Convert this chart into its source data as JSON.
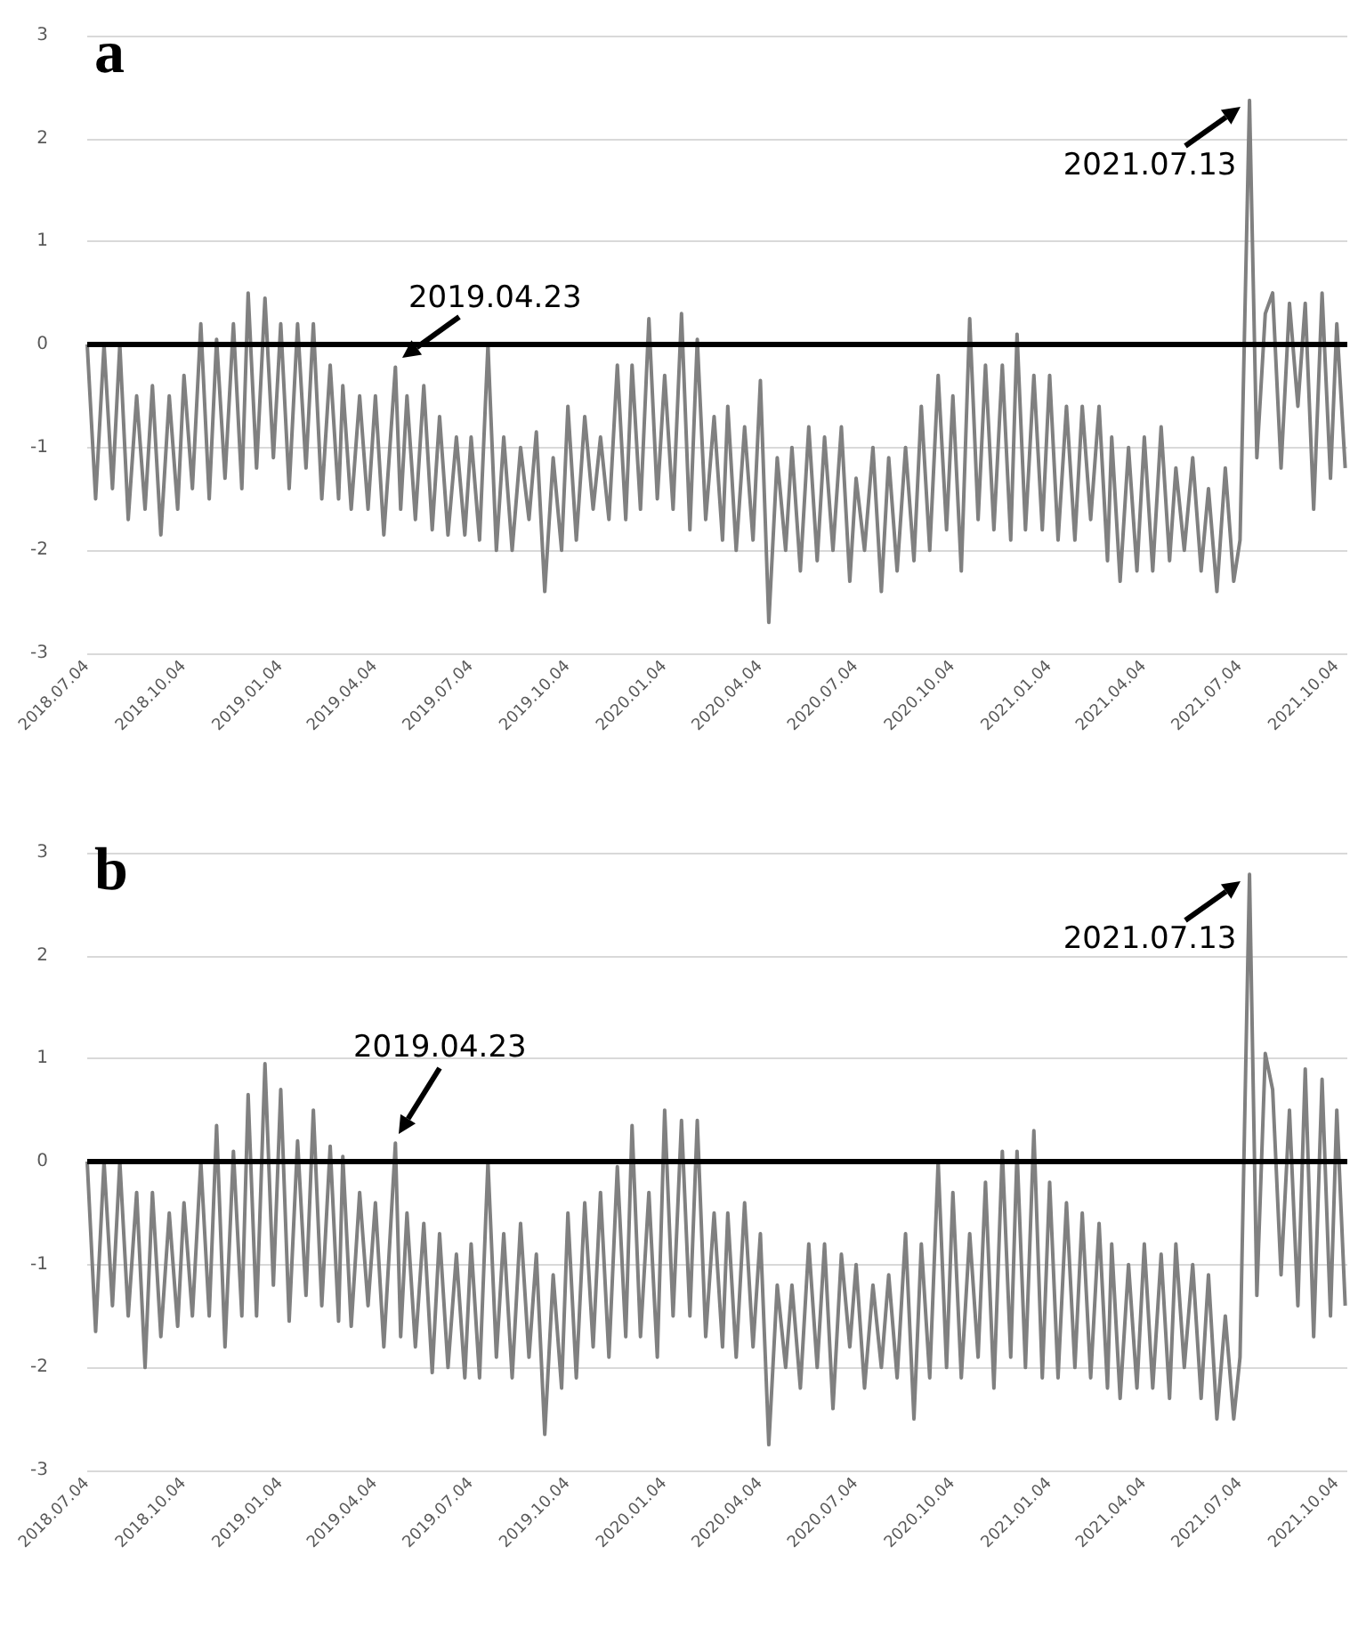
{
  "chart_data": [
    {
      "type": "line",
      "title": "a",
      "grid": "y",
      "marker": "none",
      "line_style": "solid",
      "ylim": [
        -3,
        3
      ],
      "yticks": [
        -3,
        -2,
        -1,
        0,
        1,
        2,
        3
      ],
      "xlim": [
        "2018-07-04",
        "2021-10-14"
      ],
      "xticks": [
        {
          "value": "2018-07-04",
          "label": "2018.07.04"
        },
        {
          "value": "2018-10-04",
          "label": "2018.10.04"
        },
        {
          "value": "2019-01-04",
          "label": "2019.01.04"
        },
        {
          "value": "2019-04-04",
          "label": "2019.04.04"
        },
        {
          "value": "2019-07-04",
          "label": "2019.07.04"
        },
        {
          "value": "2019-10-04",
          "label": "2019.10.04"
        },
        {
          "value": "2020-01-04",
          "label": "2020.01.04"
        },
        {
          "value": "2020-04-04",
          "label": "2020.04.04"
        },
        {
          "value": "2020-07-04",
          "label": "2020.07.04"
        },
        {
          "value": "2020-10-04",
          "label": "2020.10.04"
        },
        {
          "value": "2021-01-04",
          "label": "2021.01.04"
        },
        {
          "value": "2021-04-04",
          "label": "2021.04.04"
        },
        {
          "value": "2021-07-04",
          "label": "2021.07.04"
        },
        {
          "value": "2021-10-04",
          "label": "2021.10.04"
        }
      ],
      "ref_lines": [
        {
          "axis": "y",
          "value": 0,
          "color": "#000000"
        }
      ],
      "annotations": [
        {
          "text": "2019.04.23",
          "x": "2019-04-23",
          "y": -0.22
        },
        {
          "text": "2021.07.13",
          "x": "2021-07-13",
          "y": 2.37
        }
      ],
      "x": [
        "2018-07-04",
        "2018-07-12",
        "2018-07-20",
        "2018-07-28",
        "2018-08-04",
        "2018-08-12",
        "2018-08-20",
        "2018-08-28",
        "2018-09-04",
        "2018-09-12",
        "2018-09-20",
        "2018-09-28",
        "2018-10-04",
        "2018-10-12",
        "2018-10-20",
        "2018-10-28",
        "2018-11-04",
        "2018-11-12",
        "2018-11-20",
        "2018-11-28",
        "2018-12-04",
        "2018-12-12",
        "2018-12-20",
        "2018-12-28",
        "2019-01-04",
        "2019-01-12",
        "2019-01-20",
        "2019-01-28",
        "2019-02-04",
        "2019-02-12",
        "2019-02-20",
        "2019-02-28",
        "2019-03-04",
        "2019-03-12",
        "2019-03-20",
        "2019-03-28",
        "2019-04-04",
        "2019-04-12",
        "2019-04-23",
        "2019-04-28",
        "2019-05-04",
        "2019-05-12",
        "2019-05-20",
        "2019-05-28",
        "2019-06-04",
        "2019-06-12",
        "2019-06-20",
        "2019-06-28",
        "2019-07-04",
        "2019-07-12",
        "2019-07-20",
        "2019-07-28",
        "2019-08-04",
        "2019-08-12",
        "2019-08-20",
        "2019-08-28",
        "2019-09-04",
        "2019-09-12",
        "2019-09-20",
        "2019-09-28",
        "2019-10-04",
        "2019-10-12",
        "2019-10-20",
        "2019-10-28",
        "2019-11-04",
        "2019-11-12",
        "2019-11-20",
        "2019-11-28",
        "2019-12-04",
        "2019-12-12",
        "2019-12-20",
        "2019-12-28",
        "2020-01-04",
        "2020-01-12",
        "2020-01-20",
        "2020-01-28",
        "2020-02-04",
        "2020-02-12",
        "2020-02-20",
        "2020-02-28",
        "2020-03-04",
        "2020-03-12",
        "2020-03-20",
        "2020-03-28",
        "2020-04-04",
        "2020-04-12",
        "2020-04-20",
        "2020-04-28",
        "2020-05-04",
        "2020-05-12",
        "2020-05-20",
        "2020-05-28",
        "2020-06-04",
        "2020-06-12",
        "2020-06-20",
        "2020-06-28",
        "2020-07-04",
        "2020-07-12",
        "2020-07-20",
        "2020-07-28",
        "2020-08-04",
        "2020-08-12",
        "2020-08-20",
        "2020-08-28",
        "2020-09-04",
        "2020-09-12",
        "2020-09-20",
        "2020-09-28",
        "2020-10-04",
        "2020-10-12",
        "2020-10-20",
        "2020-10-28",
        "2020-11-04",
        "2020-11-12",
        "2020-11-20",
        "2020-11-28",
        "2020-12-04",
        "2020-12-12",
        "2020-12-20",
        "2020-12-28",
        "2021-01-04",
        "2021-01-12",
        "2021-01-20",
        "2021-01-28",
        "2021-02-04",
        "2021-02-12",
        "2021-02-20",
        "2021-02-28",
        "2021-03-04",
        "2021-03-12",
        "2021-03-20",
        "2021-03-28",
        "2021-04-04",
        "2021-04-12",
        "2021-04-20",
        "2021-04-28",
        "2021-05-04",
        "2021-05-12",
        "2021-05-20",
        "2021-05-28",
        "2021-06-04",
        "2021-06-12",
        "2021-06-20",
        "2021-06-28",
        "2021-07-04",
        "2021-07-13",
        "2021-07-20",
        "2021-07-28",
        "2021-08-04",
        "2021-08-12",
        "2021-08-20",
        "2021-08-28",
        "2021-09-04",
        "2021-09-12",
        "2021-09-20",
        "2021-09-28",
        "2021-10-04",
        "2021-10-12"
      ],
      "series": [
        {
          "color": "#808080",
          "values": [
            0,
            -1.5,
            0,
            -1.4,
            0,
            -1.7,
            -0.5,
            -1.6,
            -0.4,
            -1.85,
            -0.5,
            -1.6,
            -0.3,
            -1.4,
            0.2,
            -1.5,
            0.05,
            -1.3,
            0.2,
            -1.4,
            0.5,
            -1.2,
            0.45,
            -1.1,
            0.2,
            -1.4,
            0.2,
            -1.2,
            0.2,
            -1.5,
            -0.2,
            -1.5,
            -0.4,
            -1.6,
            -0.5,
            -1.6,
            -0.5,
            -1.85,
            -0.22,
            -1.6,
            -0.5,
            -1.7,
            -0.4,
            -1.8,
            -0.7,
            -1.85,
            -0.9,
            -1.85,
            -0.9,
            -1.9,
            0,
            -2.0,
            -0.9,
            -2.0,
            -1.0,
            -1.7,
            -0.85,
            -2.4,
            -1.1,
            -2.0,
            -0.6,
            -1.9,
            -0.7,
            -1.6,
            -0.9,
            -1.7,
            -0.2,
            -1.7,
            -0.2,
            -1.6,
            0.25,
            -1.5,
            -0.3,
            -1.6,
            0.3,
            -1.8,
            0.05,
            -1.7,
            -0.7,
            -1.9,
            -0.6,
            -2.0,
            -0.8,
            -1.9,
            -0.35,
            -2.7,
            -1.1,
            -2.0,
            -1.0,
            -2.2,
            -0.8,
            -2.1,
            -0.9,
            -2.0,
            -0.8,
            -2.3,
            -1.3,
            -2.0,
            -1.0,
            -2.4,
            -1.1,
            -2.2,
            -1.0,
            -2.1,
            -0.6,
            -2.0,
            -0.3,
            -1.8,
            -0.5,
            -2.2,
            0.25,
            -1.7,
            -0.2,
            -1.8,
            -0.2,
            -1.9,
            0.1,
            -1.8,
            -0.3,
            -1.8,
            -0.3,
            -1.9,
            -0.6,
            -1.9,
            -0.6,
            -1.7,
            -0.6,
            -2.1,
            -0.9,
            -2.3,
            -1.0,
            -2.2,
            -0.9,
            -2.2,
            -0.8,
            -2.1,
            -1.2,
            -2.0,
            -1.1,
            -2.2,
            -1.4,
            -2.4,
            -1.2,
            -2.3,
            -1.9,
            2.37,
            -1.1,
            0.3,
            0.5,
            -1.2,
            0.4,
            -0.6,
            0.4,
            -1.6,
            0.5,
            -1.3,
            0.2,
            -1.2
          ]
        }
      ]
    },
    {
      "type": "line",
      "title": "b",
      "grid": "y",
      "marker": "none",
      "line_style": "solid",
      "ylim": [
        -3,
        3
      ],
      "yticks": [
        -3,
        -2,
        -1,
        0,
        1,
        2,
        3
      ],
      "xlim": [
        "2018-07-04",
        "2021-10-14"
      ],
      "xticks": [
        {
          "value": "2018-07-04",
          "label": "2018.07.04"
        },
        {
          "value": "2018-10-04",
          "label": "2018.10.04"
        },
        {
          "value": "2019-01-04",
          "label": "2019.01.04"
        },
        {
          "value": "2019-04-04",
          "label": "2019.04.04"
        },
        {
          "value": "2019-07-04",
          "label": "2019.07.04"
        },
        {
          "value": "2019-10-04",
          "label": "2019.10.04"
        },
        {
          "value": "2020-01-04",
          "label": "2020.01.04"
        },
        {
          "value": "2020-04-04",
          "label": "2020.04.04"
        },
        {
          "value": "2020-07-04",
          "label": "2020.07.04"
        },
        {
          "value": "2020-10-04",
          "label": "2020.10.04"
        },
        {
          "value": "2021-01-04",
          "label": "2021.01.04"
        },
        {
          "value": "2021-04-04",
          "label": "2021.04.04"
        },
        {
          "value": "2021-07-04",
          "label": "2021.07.04"
        },
        {
          "value": "2021-10-04",
          "label": "2021.10.04"
        }
      ],
      "ref_lines": [
        {
          "axis": "y",
          "value": 0,
          "color": "#000000"
        }
      ],
      "annotations": [
        {
          "text": "2019.04.23",
          "x": "2019-04-23",
          "y": 0.18
        },
        {
          "text": "2021.07.13",
          "x": "2021-07-13",
          "y": 2.79
        }
      ],
      "x": [
        "2018-07-04",
        "2018-07-12",
        "2018-07-20",
        "2018-07-28",
        "2018-08-04",
        "2018-08-12",
        "2018-08-20",
        "2018-08-28",
        "2018-09-04",
        "2018-09-12",
        "2018-09-20",
        "2018-09-28",
        "2018-10-04",
        "2018-10-12",
        "2018-10-20",
        "2018-10-28",
        "2018-11-04",
        "2018-11-12",
        "2018-11-20",
        "2018-11-28",
        "2018-12-04",
        "2018-12-12",
        "2018-12-20",
        "2018-12-28",
        "2019-01-04",
        "2019-01-12",
        "2019-01-20",
        "2019-01-28",
        "2019-02-04",
        "2019-02-12",
        "2019-02-20",
        "2019-02-28",
        "2019-03-04",
        "2019-03-12",
        "2019-03-20",
        "2019-03-28",
        "2019-04-04",
        "2019-04-12",
        "2019-04-23",
        "2019-04-28",
        "2019-05-04",
        "2019-05-12",
        "2019-05-20",
        "2019-05-28",
        "2019-06-04",
        "2019-06-12",
        "2019-06-20",
        "2019-06-28",
        "2019-07-04",
        "2019-07-12",
        "2019-07-20",
        "2019-07-28",
        "2019-08-04",
        "2019-08-12",
        "2019-08-20",
        "2019-08-28",
        "2019-09-04",
        "2019-09-12",
        "2019-09-20",
        "2019-09-28",
        "2019-10-04",
        "2019-10-12",
        "2019-10-20",
        "2019-10-28",
        "2019-11-04",
        "2019-11-12",
        "2019-11-20",
        "2019-11-28",
        "2019-12-04",
        "2019-12-12",
        "2019-12-20",
        "2019-12-28",
        "2020-01-04",
        "2020-01-12",
        "2020-01-20",
        "2020-01-28",
        "2020-02-04",
        "2020-02-12",
        "2020-02-20",
        "2020-02-28",
        "2020-03-04",
        "2020-03-12",
        "2020-03-20",
        "2020-03-28",
        "2020-04-04",
        "2020-04-12",
        "2020-04-20",
        "2020-04-28",
        "2020-05-04",
        "2020-05-12",
        "2020-05-20",
        "2020-05-28",
        "2020-06-04",
        "2020-06-12",
        "2020-06-20",
        "2020-06-28",
        "2020-07-04",
        "2020-07-12",
        "2020-07-20",
        "2020-07-28",
        "2020-08-04",
        "2020-08-12",
        "2020-08-20",
        "2020-08-28",
        "2020-09-04",
        "2020-09-12",
        "2020-09-20",
        "2020-09-28",
        "2020-10-04",
        "2020-10-12",
        "2020-10-20",
        "2020-10-28",
        "2020-11-04",
        "2020-11-12",
        "2020-11-20",
        "2020-11-28",
        "2020-12-04",
        "2020-12-12",
        "2020-12-20",
        "2020-12-28",
        "2021-01-04",
        "2021-01-12",
        "2021-01-20",
        "2021-01-28",
        "2021-02-04",
        "2021-02-12",
        "2021-02-20",
        "2021-02-28",
        "2021-03-04",
        "2021-03-12",
        "2021-03-20",
        "2021-03-28",
        "2021-04-04",
        "2021-04-12",
        "2021-04-20",
        "2021-04-28",
        "2021-05-04",
        "2021-05-12",
        "2021-05-20",
        "2021-05-28",
        "2021-06-04",
        "2021-06-12",
        "2021-06-20",
        "2021-06-28",
        "2021-07-04",
        "2021-07-13",
        "2021-07-20",
        "2021-07-28",
        "2021-08-04",
        "2021-08-12",
        "2021-08-20",
        "2021-08-28",
        "2021-09-04",
        "2021-09-12",
        "2021-09-20",
        "2021-09-28",
        "2021-10-04",
        "2021-10-12"
      ],
      "series": [
        {
          "color": "#808080",
          "values": [
            0,
            -1.65,
            0,
            -1.4,
            0,
            -1.5,
            -0.3,
            -2.0,
            -0.3,
            -1.7,
            -0.5,
            -1.6,
            -0.4,
            -1.5,
            0,
            -1.5,
            0.35,
            -1.8,
            0.1,
            -1.5,
            0.65,
            -1.5,
            0.95,
            -1.2,
            0.7,
            -1.55,
            0.2,
            -1.3,
            0.5,
            -1.4,
            0.15,
            -1.55,
            0.05,
            -1.6,
            -0.3,
            -1.4,
            -0.4,
            -1.8,
            0.18,
            -1.7,
            -0.5,
            -1.8,
            -0.6,
            -2.05,
            -0.7,
            -2.0,
            -0.9,
            -2.1,
            -0.8,
            -2.1,
            0,
            -1.9,
            -0.7,
            -2.1,
            -0.6,
            -1.9,
            -0.9,
            -2.65,
            -1.1,
            -2.2,
            -0.5,
            -2.1,
            -0.4,
            -1.8,
            -0.3,
            -1.9,
            -0.05,
            -1.7,
            0.35,
            -1.7,
            -0.3,
            -1.9,
            0.5,
            -1.5,
            0.4,
            -1.5,
            0.4,
            -1.7,
            -0.5,
            -1.8,
            -0.5,
            -1.9,
            -0.4,
            -1.8,
            -0.7,
            -2.75,
            -1.2,
            -2.0,
            -1.2,
            -2.2,
            -0.8,
            -2.0,
            -0.8,
            -2.4,
            -0.9,
            -1.8,
            -1.0,
            -2.2,
            -1.2,
            -2.0,
            -1.1,
            -2.1,
            -0.7,
            -2.5,
            -0.8,
            -2.1,
            0,
            -2.0,
            -0.3,
            -2.1,
            -0.7,
            -1.9,
            -0.2,
            -2.2,
            0.1,
            -1.9,
            0.1,
            -2.0,
            0.3,
            -2.1,
            -0.2,
            -2.1,
            -0.4,
            -2.0,
            -0.5,
            -2.1,
            -0.6,
            -2.2,
            -0.8,
            -2.3,
            -1.0,
            -2.2,
            -0.8,
            -2.2,
            -0.9,
            -2.3,
            -0.8,
            -2.0,
            -1.0,
            -2.3,
            -1.1,
            -2.5,
            -1.5,
            -2.5,
            -1.9,
            2.79,
            -1.3,
            1.05,
            0.7,
            -1.1,
            0.5,
            -1.4,
            0.9,
            -1.7,
            0.8,
            -1.5,
            0.5,
            -1.4
          ]
        }
      ]
    }
  ]
}
